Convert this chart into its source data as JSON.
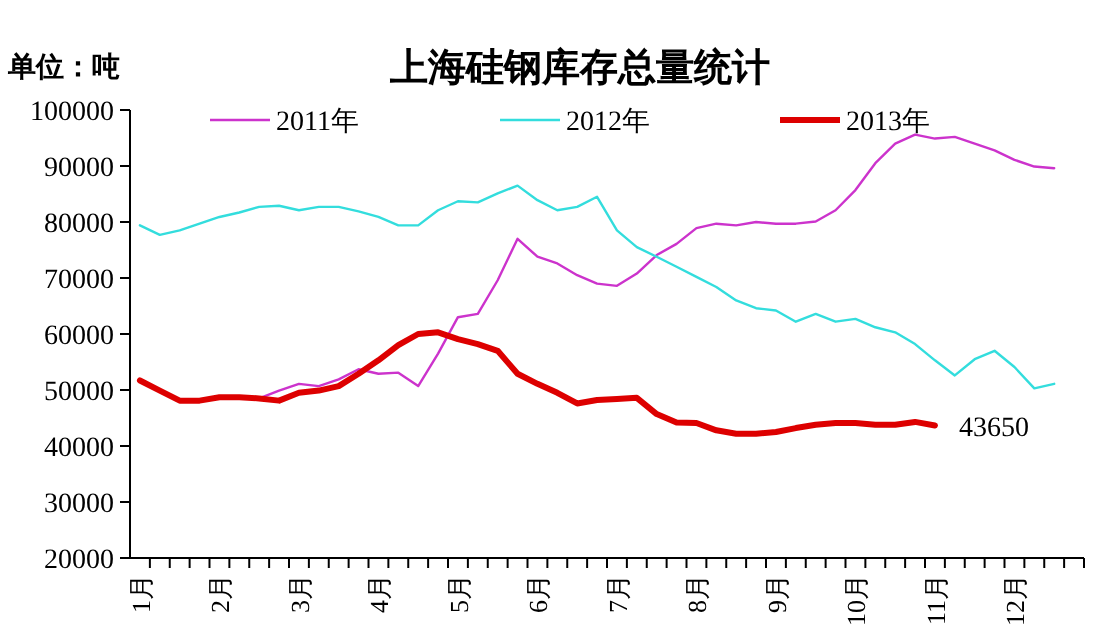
{
  "chart_data": {
    "type": "line",
    "title": "上海硅钢库存总量统计",
    "ylabel": "单位：吨",
    "categories": [
      "1月",
      null,
      null,
      null,
      "2月",
      null,
      null,
      null,
      "3月",
      null,
      null,
      null,
      "4月",
      null,
      null,
      null,
      "5月",
      null,
      null,
      null,
      "6月",
      null,
      null,
      null,
      "7月",
      null,
      null,
      null,
      "8月",
      null,
      null,
      null,
      "9月",
      null,
      null,
      null,
      "10月",
      null,
      null,
      null,
      "11月",
      null,
      null,
      null,
      "12月",
      null,
      null,
      null
    ],
    "ylim": [
      20000,
      100000
    ],
    "yticks": [
      20000,
      30000,
      40000,
      50000,
      60000,
      70000,
      80000,
      90000,
      100000
    ],
    "grid": false,
    "legend": "top",
    "marker": "none",
    "line_style": "solid",
    "series": [
      {
        "name": "2011年",
        "color": "#cc33cc",
        "values": [
          null,
          null,
          null,
          null,
          null,
          null,
          48500,
          49900,
          51100,
          50700,
          51900,
          53700,
          52900,
          53100,
          50700,
          56500,
          63000,
          63600,
          69600,
          77000,
          73800,
          72600,
          70500,
          69000,
          68600,
          70800,
          74100,
          76100,
          78900,
          79700,
          79400,
          80000,
          79700,
          79700,
          80100,
          82100,
          85700,
          90500,
          94000,
          95600,
          94900,
          95200,
          94000,
          92800,
          91100,
          89900,
          89600,
          null
        ]
      },
      {
        "name": "2012年",
        "color": "#33dddd",
        "values": [
          79400,
          77700,
          78500,
          79700,
          80900,
          81700,
          82700,
          82900,
          82100,
          82700,
          82700,
          81900,
          80900,
          79400,
          79400,
          82100,
          83700,
          83500,
          85100,
          86500,
          83900,
          82100,
          82700,
          84500,
          78500,
          75500,
          73800,
          72000,
          70200,
          68400,
          66000,
          64600,
          64200,
          62200,
          63600,
          62200,
          62700,
          61200,
          60300,
          58200,
          55300,
          52600,
          55500,
          57000,
          54100,
          50300,
          51100,
          null
        ]
      },
      {
        "name": "2013年",
        "color": "#dd0000",
        "values": [
          51700,
          49900,
          48100,
          48100,
          48700,
          48700,
          48500,
          48100,
          49500,
          49900,
          50700,
          52900,
          55300,
          58000,
          60000,
          60300,
          59100,
          58200,
          57000,
          52900,
          51100,
          49500,
          47600,
          48200,
          48400,
          48600,
          45700,
          44200,
          44100,
          42800,
          42200,
          42200,
          42500,
          43200,
          43800,
          44100,
          44100,
          43800,
          43800,
          44300,
          43650,
          null,
          null,
          null,
          null,
          null,
          null,
          null
        ],
        "value_labels": [
          null,
          null,
          null,
          null,
          null,
          null,
          null,
          null,
          null,
          null,
          null,
          null,
          null,
          null,
          null,
          null,
          null,
          null,
          null,
          null,
          null,
          null,
          null,
          null,
          null,
          null,
          null,
          null,
          null,
          null,
          null,
          null,
          null,
          null,
          null,
          null,
          null,
          null,
          null,
          null,
          "43650",
          null,
          null,
          null,
          null,
          null,
          null,
          null
        ]
      }
    ]
  }
}
